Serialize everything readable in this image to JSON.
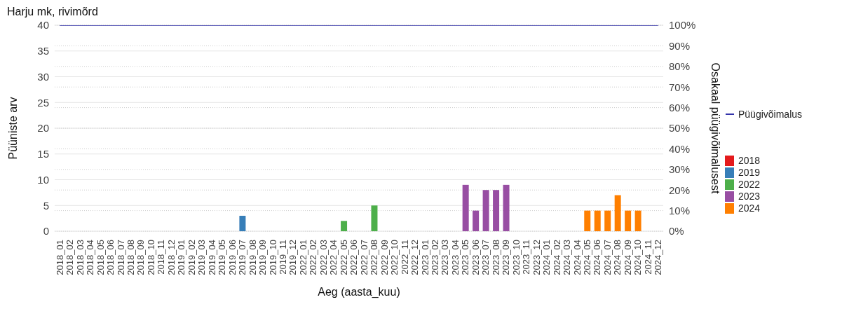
{
  "chart_data": {
    "type": "bar",
    "title": "Harju mk, rivimõrd",
    "xlabel": "Aeg (aasta_kuu)",
    "ylabel": "Püüniste arv",
    "y2label": "Osakaal püügivõimalusest",
    "categories": [
      "2018_01",
      "2018_02",
      "2018_03",
      "2018_04",
      "2018_05",
      "2018_06",
      "2018_07",
      "2018_08",
      "2018_09",
      "2018_10",
      "2018_11",
      "2018_12",
      "2019_01",
      "2019_02",
      "2019_03",
      "2019_04",
      "2019_05",
      "2019_06",
      "2019_07",
      "2019_08",
      "2019_09",
      "2019_10",
      "2019_11",
      "2019_12",
      "2022_01",
      "2022_02",
      "2022_03",
      "2022_04",
      "2022_05",
      "2022_06",
      "2022_07",
      "2022_08",
      "2022_09",
      "2022_10",
      "2022_11",
      "2022_12",
      "2023_01",
      "2023_02",
      "2023_03",
      "2023_04",
      "2023_05",
      "2023_06",
      "2023_07",
      "2023_08",
      "2023_09",
      "2023_10",
      "2023_11",
      "2023_12",
      "2024_01",
      "2024_02",
      "2024_03",
      "2024_04",
      "2024_05",
      "2024_06",
      "2024_07",
      "2024_08",
      "2024_09",
      "2024_10",
      "2024_11",
      "2024_12"
    ],
    "stacked": true,
    "series": [
      {
        "name": "Püügivõimalus",
        "type": "line",
        "axis": "y2",
        "color": "#3333aa",
        "values": [
          100,
          100,
          100,
          100,
          100,
          100,
          100,
          100,
          100,
          100,
          100,
          100,
          100,
          100,
          100,
          100,
          100,
          100,
          100,
          100,
          100,
          100,
          100,
          100,
          100,
          100,
          100,
          100,
          100,
          100,
          100,
          100,
          100,
          100,
          100,
          100,
          100,
          100,
          100,
          100,
          100,
          100,
          100,
          100,
          100,
          100,
          100,
          100,
          100,
          100,
          100,
          100,
          100,
          100,
          100,
          100,
          100,
          100,
          100,
          100
        ]
      },
      {
        "name": "2018",
        "color": "#e41a1c",
        "values": [
          null,
          null,
          null,
          null,
          null,
          null,
          null,
          null,
          null,
          null,
          null,
          null,
          null,
          null,
          null,
          null,
          null,
          null,
          null,
          null,
          null,
          null,
          null,
          null,
          null,
          null,
          null,
          null,
          null,
          null,
          null,
          null,
          null,
          null,
          null,
          null,
          null,
          null,
          null,
          null,
          null,
          null,
          null,
          null,
          null,
          null,
          null,
          null,
          null,
          null,
          null,
          null,
          null,
          null,
          null,
          null,
          null,
          null,
          null,
          null
        ]
      },
      {
        "name": "2019",
        "color": "#377eb8",
        "values": [
          null,
          null,
          null,
          null,
          null,
          null,
          null,
          null,
          null,
          null,
          null,
          null,
          null,
          null,
          null,
          null,
          null,
          null,
          3,
          null,
          null,
          null,
          null,
          null,
          null,
          null,
          null,
          null,
          null,
          null,
          null,
          null,
          null,
          null,
          null,
          null,
          null,
          null,
          null,
          null,
          null,
          null,
          null,
          null,
          null,
          null,
          null,
          null,
          null,
          null,
          null,
          null,
          null,
          null,
          null,
          null,
          null,
          null,
          null,
          null
        ]
      },
      {
        "name": "2022",
        "color": "#4daf4a",
        "values": [
          null,
          null,
          null,
          null,
          null,
          null,
          null,
          null,
          null,
          null,
          null,
          null,
          null,
          null,
          null,
          null,
          null,
          null,
          null,
          null,
          null,
          null,
          null,
          null,
          null,
          null,
          null,
          null,
          2,
          null,
          null,
          5,
          null,
          null,
          null,
          null,
          null,
          null,
          null,
          null,
          null,
          null,
          null,
          null,
          null,
          null,
          null,
          null,
          null,
          null,
          null,
          null,
          null,
          null,
          null,
          null,
          null,
          null,
          null,
          null
        ]
      },
      {
        "name": "2023",
        "color": "#984ea3",
        "values": [
          null,
          null,
          null,
          null,
          null,
          null,
          null,
          null,
          null,
          null,
          null,
          null,
          null,
          null,
          null,
          null,
          null,
          null,
          null,
          null,
          null,
          null,
          null,
          null,
          null,
          null,
          null,
          null,
          null,
          null,
          null,
          null,
          null,
          null,
          null,
          null,
          null,
          null,
          null,
          null,
          9,
          4,
          8,
          8,
          9,
          null,
          null,
          null,
          null,
          null,
          null,
          null,
          null,
          null,
          null,
          null,
          null,
          null,
          null,
          null
        ]
      },
      {
        "name": "2024",
        "color": "#ff7f00",
        "values": [
          null,
          null,
          null,
          null,
          null,
          null,
          null,
          null,
          null,
          null,
          null,
          null,
          null,
          null,
          null,
          null,
          null,
          null,
          null,
          null,
          null,
          null,
          null,
          null,
          null,
          null,
          null,
          null,
          null,
          null,
          null,
          null,
          null,
          null,
          null,
          null,
          null,
          null,
          null,
          null,
          null,
          null,
          null,
          null,
          null,
          null,
          null,
          null,
          null,
          null,
          null,
          null,
          4,
          4,
          4,
          7,
          4,
          4,
          null,
          null
        ]
      }
    ],
    "ylim": [
      0,
      40
    ],
    "yticks": [
      0,
      5,
      10,
      15,
      20,
      25,
      30,
      35,
      40
    ],
    "y2lim": [
      0,
      100
    ],
    "y2ticks": [
      {
        "value": 0,
        "label": "0%"
      },
      {
        "value": 10,
        "label": "10%"
      },
      {
        "value": 20,
        "label": "20%"
      },
      {
        "value": 30,
        "label": "30%"
      },
      {
        "value": 40,
        "label": "40%"
      },
      {
        "value": 50,
        "label": "50%"
      },
      {
        "value": 60,
        "label": "60%"
      },
      {
        "value": 70,
        "label": "70%"
      },
      {
        "value": 80,
        "label": "80%"
      },
      {
        "value": 90,
        "label": "90%"
      },
      {
        "value": 100,
        "label": "100%"
      }
    ],
    "grid": true,
    "legend": "right"
  }
}
